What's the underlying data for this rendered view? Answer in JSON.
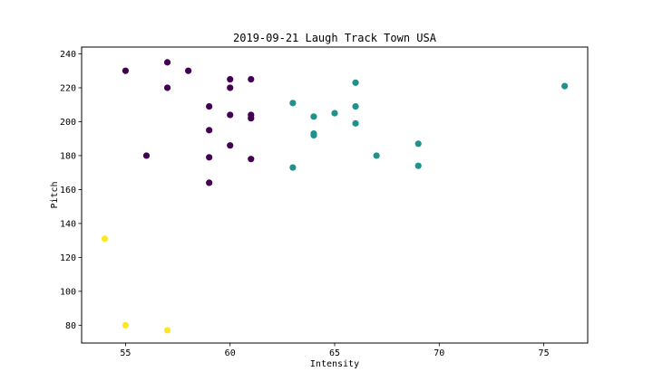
{
  "chart_data": {
    "type": "scatter",
    "title": "2019-09-21 Laugh Track Town USA",
    "xlabel": "Intensity",
    "ylabel": "Pitch",
    "xlim": [
      52.9,
      77.1
    ],
    "ylim": [
      69.5,
      244
    ],
    "xticks": [
      55,
      60,
      65,
      70,
      75
    ],
    "yticks": [
      80,
      100,
      120,
      140,
      160,
      180,
      200,
      220,
      240
    ],
    "grid": false,
    "colors": {
      "purple": "#440154",
      "teal": "#21918c",
      "yellow": "#fde725"
    },
    "series": [
      {
        "color_key": "purple",
        "points": [
          {
            "x": 55,
            "y": 230
          },
          {
            "x": 57,
            "y": 235
          },
          {
            "x": 58,
            "y": 230
          },
          {
            "x": 57,
            "y": 220
          },
          {
            "x": 60,
            "y": 225
          },
          {
            "x": 61,
            "y": 225
          },
          {
            "x": 60,
            "y": 220
          },
          {
            "x": 59,
            "y": 209
          },
          {
            "x": 60,
            "y": 204
          },
          {
            "x": 61,
            "y": 204
          },
          {
            "x": 61,
            "y": 202
          },
          {
            "x": 59,
            "y": 195
          },
          {
            "x": 60,
            "y": 186
          },
          {
            "x": 56,
            "y": 180
          },
          {
            "x": 59,
            "y": 179
          },
          {
            "x": 61,
            "y": 178
          },
          {
            "x": 59,
            "y": 164
          }
        ]
      },
      {
        "color_key": "teal",
        "points": [
          {
            "x": 66,
            "y": 223
          },
          {
            "x": 76,
            "y": 221
          },
          {
            "x": 63,
            "y": 211
          },
          {
            "x": 66,
            "y": 209
          },
          {
            "x": 65,
            "y": 205
          },
          {
            "x": 64,
            "y": 203
          },
          {
            "x": 66,
            "y": 199
          },
          {
            "x": 64,
            "y": 193
          },
          {
            "x": 64,
            "y": 192
          },
          {
            "x": 69,
            "y": 187
          },
          {
            "x": 67,
            "y": 180
          },
          {
            "x": 69,
            "y": 174
          },
          {
            "x": 63,
            "y": 173
          }
        ]
      },
      {
        "color_key": "yellow",
        "points": [
          {
            "x": 54,
            "y": 131
          },
          {
            "x": 55,
            "y": 80
          },
          {
            "x": 57,
            "y": 77
          }
        ]
      }
    ]
  }
}
